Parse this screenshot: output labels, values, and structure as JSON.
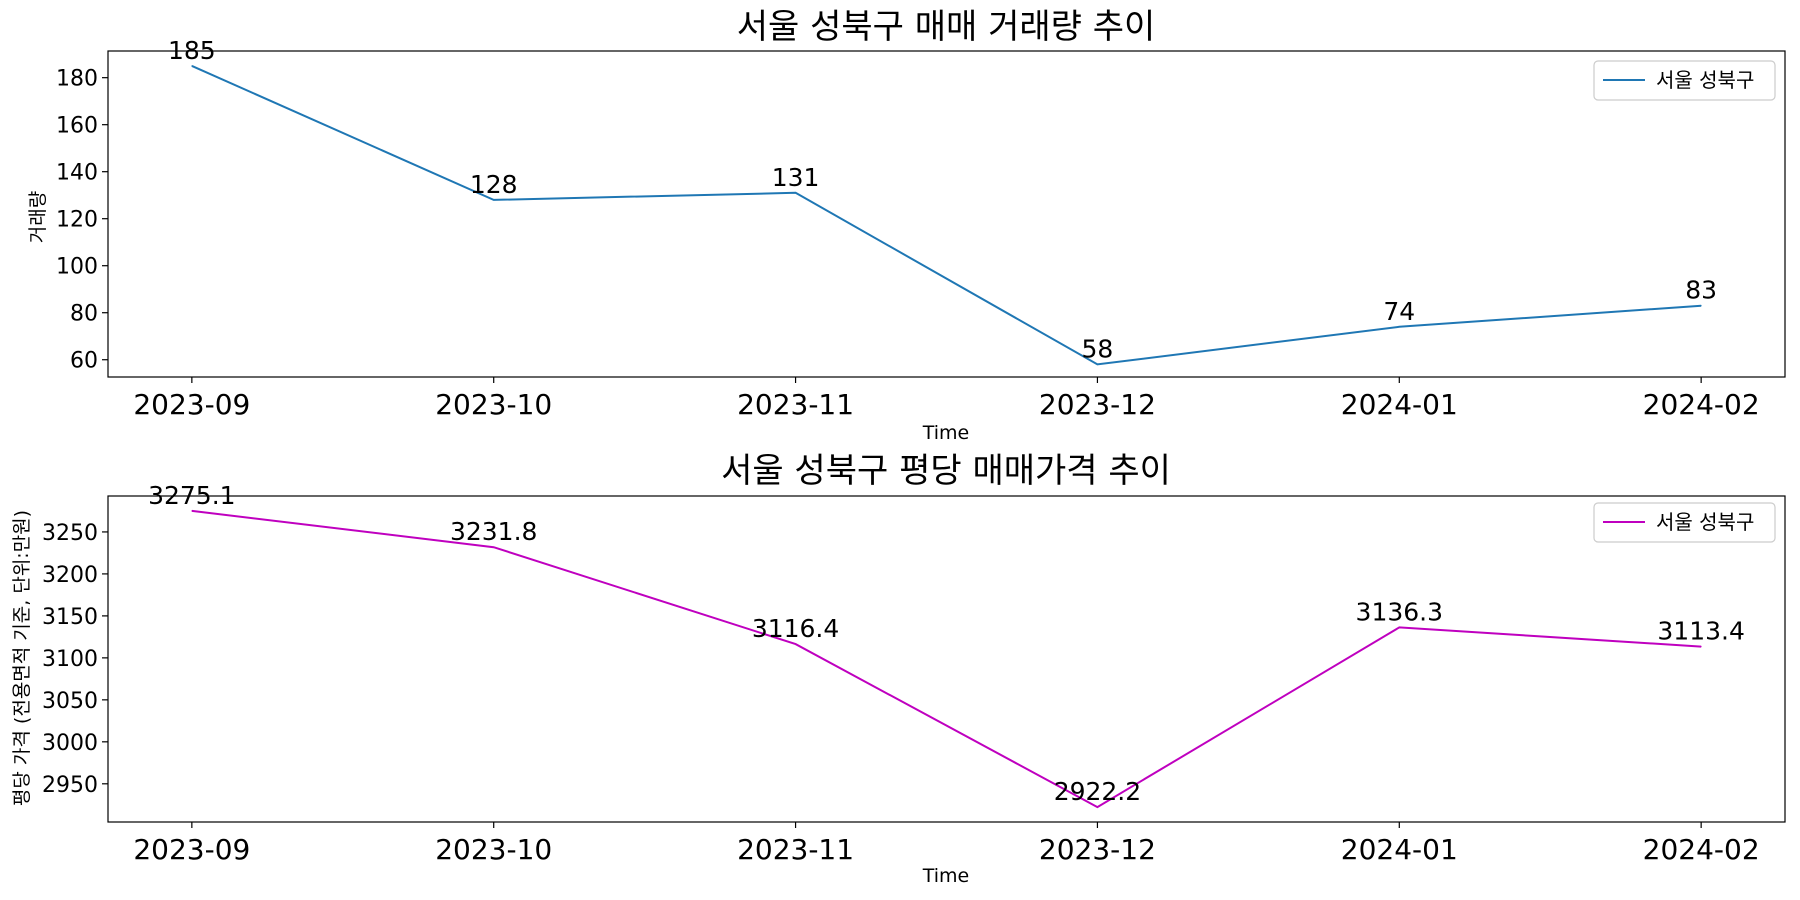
{
  "chart_data": [
    {
      "type": "line",
      "title": "서울 성북구 매매 거래량 추이",
      "xlabel": "Time",
      "ylabel": "거래량",
      "categories": [
        "2023-09",
        "2023-10",
        "2023-11",
        "2023-12",
        "2024-01",
        "2024-02"
      ],
      "series": [
        {
          "name": "서울 성북구",
          "color": "#1f77b4",
          "values": [
            185,
            128,
            131,
            58,
            74,
            83
          ],
          "labels": [
            "185",
            "128",
            "131",
            "58",
            "74",
            "83"
          ]
        }
      ],
      "ylim": [
        52.65,
        191.35
      ],
      "yticks": [
        60,
        80,
        100,
        120,
        140,
        160,
        180
      ],
      "legend": "top-right",
      "grid": false
    },
    {
      "type": "line",
      "title": "서울 성북구 평당 매매가격 추이",
      "xlabel": "Time",
      "ylabel": "평당 가격 (전용면적 기준, 단위:만원)",
      "categories": [
        "2023-09",
        "2023-10",
        "2023-11",
        "2023-12",
        "2024-01",
        "2024-02"
      ],
      "series": [
        {
          "name": "서울 성북구",
          "color": "#bf00bf",
          "values": [
            3275.1,
            3231.8,
            3116.4,
            2922.2,
            3136.3,
            3113.4
          ],
          "labels": [
            "3275.1",
            "3231.8",
            "3116.4",
            "2922.2",
            "3136.3",
            "3113.4"
          ]
        }
      ],
      "ylim": [
        2904.5,
        3292.8
      ],
      "yticks": [
        2950,
        3000,
        3050,
        3100,
        3150,
        3200,
        3250
      ],
      "legend": "top-right",
      "grid": false
    }
  ]
}
